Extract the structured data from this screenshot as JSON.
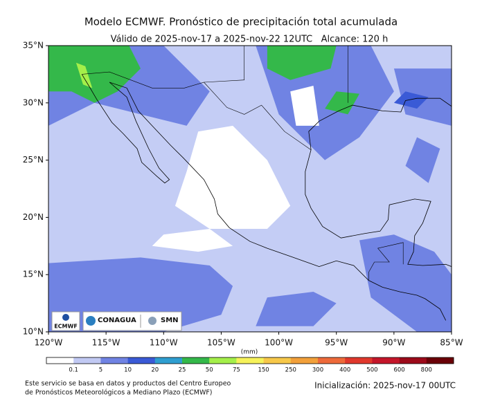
{
  "header": {
    "title": "Modelo ECMWF. Pronóstico de precipitación total acumulada",
    "subtitle": "Válido de 2025-nov-17 a 2025-nov-22 12UTC   Alcance: 120 h"
  },
  "map": {
    "lat_labels": [
      "35°N",
      "30°N",
      "25°N",
      "20°N",
      "15°N",
      "10°N"
    ],
    "lon_labels": [
      "120°W",
      "115°W",
      "110°W",
      "105°W",
      "100°W",
      "95°W",
      "90°W",
      "85°W"
    ],
    "logos": {
      "ecmwf": "ECMWF",
      "conagua": "CONAGUA",
      "smn": "SMN"
    }
  },
  "colorbar": {
    "unit": "(mm)",
    "ticks": [
      "0.1",
      "5",
      "10",
      "20",
      "25",
      "50",
      "75",
      "150",
      "250",
      "300",
      "400",
      "500",
      "600",
      "800"
    ],
    "colors": [
      "#ffffff",
      "#c1c9f3",
      "#7083e3",
      "#3a5ad6",
      "#2f9ed0",
      "#34b84a",
      "#a4ef4a",
      "#f6f25a",
      "#f7c84a",
      "#f2a03a",
      "#ee6a3a",
      "#e0382c",
      "#c4162a",
      "#9c0a1a",
      "#6a0008"
    ]
  },
  "footer": {
    "source_line1": "Este servicio se basa en datos y productos del Centro Europeo",
    "source_line2": "de Pronósticos Meteorológicos a Mediano Plazo (ECMWF)",
    "init": "Inicialización: 2025-nov-17 00UTC"
  }
}
